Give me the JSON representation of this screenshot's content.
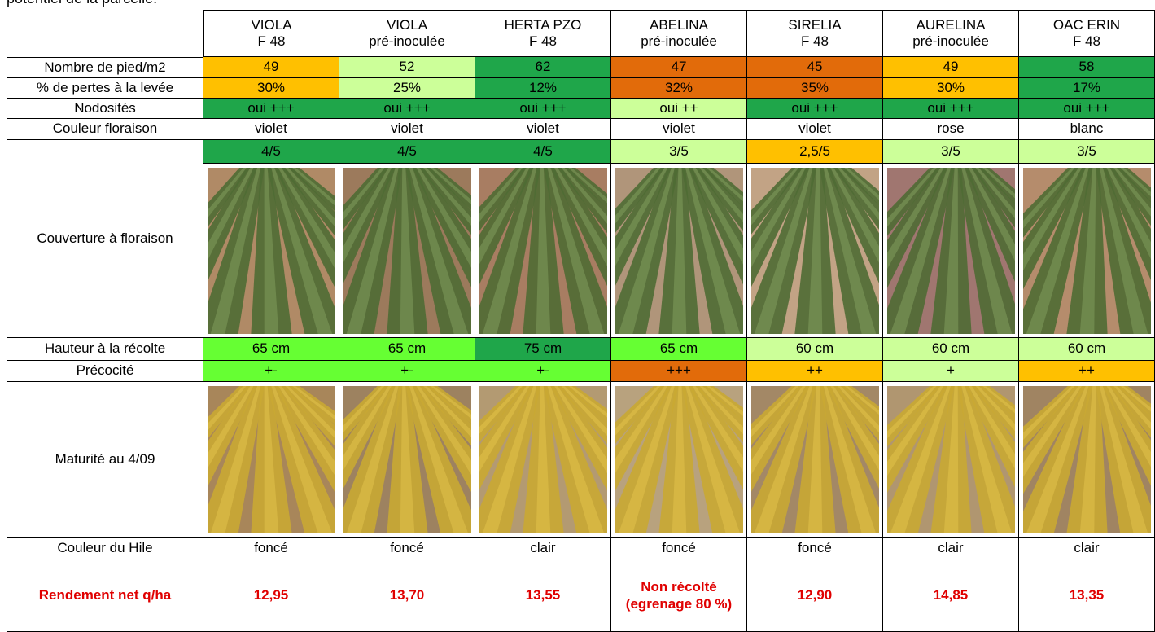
{
  "caption": "potentiel de la parcelle.",
  "header": [
    {
      "name": "VIOLA",
      "sub": "F 48"
    },
    {
      "name": "VIOLA",
      "sub": "pré-inoculée"
    },
    {
      "name": "HERTA PZO",
      "sub": "F 48"
    },
    {
      "name": "ABELINA",
      "sub": "pré-inoculée"
    },
    {
      "name": "SIRELIA",
      "sub": "F 48"
    },
    {
      "name": "AURELINA",
      "sub": "pré-inoculée"
    },
    {
      "name": "OAC ERIN",
      "sub": "F 48"
    }
  ],
  "rows": [
    {
      "label": "Nombre de pied/m2",
      "values": [
        "49",
        "52",
        "62",
        "47",
        "45",
        "49",
        "58"
      ],
      "fills": [
        "#ffc000",
        "#ccff99",
        "#1fa64a",
        "#e26b0a",
        "#e26b0a",
        "#ffc000",
        "#1fa64a"
      ]
    },
    {
      "label": "% de pertes à la levée",
      "values": [
        "30%",
        "25%",
        "12%",
        "32%",
        "35%",
        "30%",
        "17%"
      ],
      "fills": [
        "#ffc000",
        "#ccff99",
        "#1fa64a",
        "#e26b0a",
        "#e26b0a",
        "#ffc000",
        "#1fa64a"
      ]
    },
    {
      "label": "Nodosités",
      "values": [
        "oui +++",
        "oui +++",
        "oui +++",
        "oui ++",
        "oui +++",
        "oui +++",
        "oui +++"
      ],
      "fills": [
        "#1fa64a",
        "#1fa64a",
        "#1fa64a",
        "#ccff99",
        "#1fa64a",
        "#1fa64a",
        "#1fa64a"
      ]
    },
    {
      "label": "Couleur floraison",
      "values": [
        "violet",
        "violet",
        "violet",
        "violet",
        "violet",
        "rose",
        "blanc"
      ]
    },
    {
      "label": "Couverture à floraison",
      "values": [
        "4/5",
        "4/5",
        "4/5",
        "3/5",
        "2,5/5",
        "3/5",
        "3/5"
      ],
      "fills": [
        "#1fa64a",
        "#1fa64a",
        "#1fa64a",
        "#ccff99",
        "#ffc000",
        "#ccff99",
        "#ccff99"
      ]
    },
    {
      "label": "Hauteur à la récolte",
      "values": [
        "65 cm",
        "65 cm",
        "75 cm",
        "65 cm",
        "60 cm",
        "60 cm",
        "60 cm"
      ],
      "fills": [
        "#66ff33",
        "#66ff33",
        "#1fa64a",
        "#66ff33",
        "#ccff99",
        "#ccff99",
        "#ccff99"
      ]
    },
    {
      "label": "Précocité",
      "values": [
        "+-",
        "+-",
        "+-",
        "+++",
        "++",
        "+",
        "++"
      ],
      "fills": [
        "#66ff33",
        "#66ff33",
        "#66ff33",
        "#e26b0a",
        "#ffc000",
        "#ccff99",
        "#ffc000"
      ]
    },
    {
      "label": "Maturité au 4/09"
    },
    {
      "label": "Couleur du Hile",
      "values": [
        "foncé",
        "foncé",
        "clair",
        "foncé",
        "foncé",
        "clair",
        "clair"
      ]
    },
    {
      "label": "Rendement  net q/ha",
      "values": [
        "12,95",
        "13,70",
        "13,55",
        "Non récolté (egrenage 80 %)",
        "12,90",
        "14,85",
        "13,35"
      ]
    }
  ]
}
